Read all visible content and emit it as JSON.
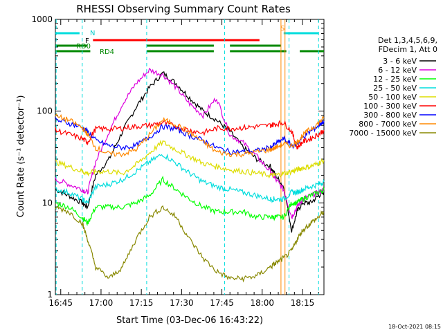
{
  "chart_data": {
    "type": "line",
    "title": "RHESSI Observing Summary Count Rates",
    "xlabel": "Start Time (03-Dec-06 16:43:22)",
    "ylabel": "Count Rate (s⁻¹ detector⁻¹)",
    "yscale": "log",
    "ylim": [
      1,
      1000
    ],
    "xlim_minutes_after_1643": [
      0,
      100
    ],
    "x_tick_labels": [
      "16:45",
      "17:00",
      "17:15",
      "17:30",
      "17:45",
      "18:00",
      "18:15"
    ],
    "y_tick_labels": [
      "1",
      "10",
      "100",
      "1000"
    ],
    "legend_header": [
      "Det 1,3,4,5,6,9,",
      "FDecim 1, Att 0"
    ],
    "timestamp": "18-Oct-2021 08:15",
    "flags": {
      "N_label": "N",
      "F_label": "F",
      "RD0_label": "RD0",
      "RD4_label": "RD4",
      "S_label": "S"
    },
    "series": [
      {
        "name": "3 - 6 keV",
        "color": "#000000",
        "x": [
          0,
          5,
          10,
          12,
          15,
          20,
          25,
          30,
          35,
          40,
          45,
          50,
          55,
          60,
          65,
          70,
          75,
          80,
          82,
          85,
          88,
          90,
          92,
          95,
          98,
          100
        ],
        "y": [
          14,
          12,
          10,
          9,
          20,
          30,
          60,
          110,
          180,
          260,
          200,
          140,
          100,
          80,
          60,
          40,
          30,
          25,
          20,
          15,
          5,
          8,
          10,
          10,
          12,
          13
        ]
      },
      {
        "name": "6 - 12 keV",
        "color": "#dd00dd",
        "x": [
          0,
          5,
          10,
          12,
          15,
          20,
          25,
          30,
          35,
          40,
          45,
          50,
          55,
          60,
          65,
          70,
          75,
          80,
          82,
          85,
          88,
          90,
          92,
          95,
          98,
          100
        ],
        "y": [
          18,
          16,
          14,
          13,
          28,
          60,
          120,
          200,
          280,
          250,
          180,
          120,
          90,
          140,
          55,
          45,
          32,
          22,
          18,
          14,
          7,
          9,
          11,
          12,
          13,
          14
        ]
      },
      {
        "name": "12 - 25 keV",
        "color": "#00ff00",
        "x": [
          0,
          5,
          10,
          12,
          15,
          20,
          25,
          30,
          35,
          40,
          45,
          50,
          55,
          60,
          65,
          70,
          75,
          80,
          82,
          85,
          88,
          90,
          92,
          95,
          98,
          100
        ],
        "y": [
          10,
          9,
          7,
          6,
          9,
          9,
          9,
          10,
          12,
          18,
          14,
          11,
          9,
          8,
          8,
          8,
          7,
          7,
          7,
          7,
          10,
          10,
          11,
          12,
          13,
          14
        ]
      },
      {
        "name": "25 - 50 keV",
        "color": "#00dddd",
        "x": [
          0,
          5,
          10,
          12,
          15,
          20,
          25,
          30,
          35,
          40,
          45,
          50,
          55,
          60,
          65,
          70,
          75,
          80,
          82,
          85,
          88,
          90,
          92,
          95,
          98,
          100
        ],
        "y": [
          14,
          13,
          11,
          10,
          15,
          16,
          18,
          22,
          28,
          34,
          27,
          21,
          17,
          15,
          14,
          13,
          12,
          11,
          11,
          11,
          13,
          13,
          14,
          15,
          16,
          17
        ]
      },
      {
        "name": "50 - 100 keV",
        "color": "#dddd00",
        "x": [
          0,
          5,
          10,
          12,
          15,
          20,
          25,
          30,
          35,
          40,
          45,
          50,
          55,
          60,
          65,
          70,
          75,
          80,
          82,
          85,
          88,
          90,
          92,
          95,
          98,
          100
        ],
        "y": [
          28,
          25,
          22,
          21,
          22,
          22,
          21,
          26,
          35,
          46,
          38,
          32,
          27,
          25,
          23,
          22,
          21,
          20,
          20,
          21,
          22,
          23,
          24,
          25,
          27,
          29
        ]
      },
      {
        "name": "100 - 300 keV",
        "color": "#ff0000",
        "x": [
          0,
          5,
          10,
          12,
          15,
          20,
          25,
          30,
          35,
          40,
          45,
          50,
          55,
          60,
          65,
          70,
          75,
          80,
          82,
          85,
          88,
          90,
          92,
          95,
          98,
          100
        ],
        "y": [
          62,
          56,
          50,
          46,
          64,
          64,
          65,
          68,
          70,
          75,
          68,
          62,
          58,
          65,
          65,
          66,
          68,
          70,
          72,
          75,
          60,
          40,
          46,
          50,
          56,
          62
        ]
      },
      {
        "name": "300 - 800 keV",
        "color": "#0000ff",
        "x": [
          0,
          5,
          10,
          12,
          15,
          20,
          25,
          30,
          35,
          40,
          45,
          50,
          55,
          60,
          65,
          70,
          75,
          80,
          82,
          85,
          88,
          90,
          92,
          95,
          98,
          100
        ],
        "y": [
          80,
          74,
          66,
          60,
          48,
          42,
          40,
          42,
          52,
          68,
          64,
          54,
          48,
          40,
          36,
          36,
          37,
          40,
          44,
          50,
          42,
          44,
          52,
          60,
          70,
          78
        ]
      },
      {
        "name": "800 - 7000 keV",
        "color": "#ff8800",
        "x": [
          0,
          5,
          10,
          12,
          15,
          20,
          25,
          30,
          35,
          40,
          45,
          50,
          55,
          60,
          65,
          70,
          75,
          80,
          82,
          85,
          88,
          90,
          92,
          95,
          98,
          100
        ],
        "y": [
          88,
          80,
          66,
          56,
          40,
          34,
          34,
          38,
          55,
          80,
          72,
          58,
          46,
          36,
          34,
          34,
          36,
          38,
          40,
          44,
          42,
          46,
          54,
          64,
          74,
          84
        ]
      },
      {
        "name": "7000 - 15000 keV",
        "color": "#888800",
        "x": [
          0,
          5,
          10,
          12,
          15,
          20,
          25,
          30,
          35,
          40,
          45,
          50,
          55,
          60,
          65,
          70,
          75,
          80,
          82,
          85,
          88,
          90,
          92,
          95,
          98,
          100
        ],
        "y": [
          9,
          8,
          6,
          4,
          2,
          1.5,
          2,
          4,
          7,
          9,
          7,
          4,
          2.5,
          1.8,
          1.5,
          1.5,
          1.6,
          2,
          2.2,
          2.5,
          3,
          4,
          5,
          6,
          7,
          8
        ]
      }
    ]
  }
}
